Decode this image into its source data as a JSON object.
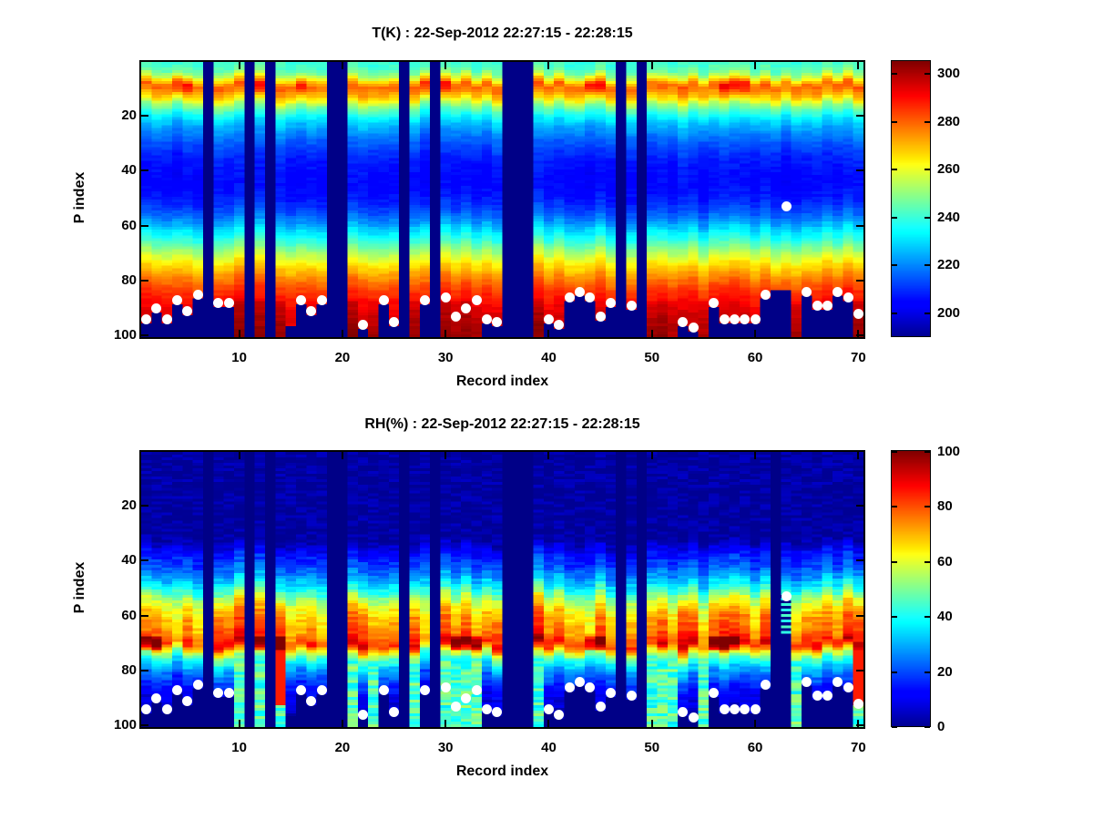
{
  "figure": {
    "background": "#ffffff",
    "text_color": "#000000"
  },
  "chart_data": [
    {
      "type": "heatmap",
      "title": "T(K) : 22-Sep-2012 22:27:15 - 22:28:15",
      "xlabel": "Record index",
      "ylabel": "P index",
      "x_range": [
        1,
        70
      ],
      "y_range": [
        1,
        100
      ],
      "y_axis_reversed": true,
      "grid": false,
      "x_ticks": [
        10,
        20,
        30,
        40,
        50,
        60,
        70
      ],
      "y_ticks": [
        20,
        40,
        60,
        80,
        100
      ],
      "colormap": "jet",
      "caxis": [
        190,
        305
      ],
      "colorbar_ticks": [
        200,
        220,
        240,
        260,
        280,
        300
      ],
      "missing_value_color": "#000087",
      "dot_color": "#ffffff",
      "vertical_profile": [
        [
          1,
          240
        ],
        [
          4,
          246
        ],
        [
          6,
          258
        ],
        [
          9,
          280
        ],
        [
          12,
          272
        ],
        [
          14,
          263
        ],
        [
          16,
          250
        ],
        [
          19,
          238
        ],
        [
          22,
          228
        ],
        [
          26,
          220
        ],
        [
          30,
          214
        ],
        [
          35,
          208
        ],
        [
          40,
          205
        ],
        [
          45,
          204
        ],
        [
          50,
          207
        ],
        [
          54,
          212
        ],
        [
          58,
          220
        ],
        [
          62,
          231
        ],
        [
          66,
          242
        ],
        [
          70,
          254
        ],
        [
          74,
          265
        ],
        [
          78,
          274
        ],
        [
          82,
          282
        ],
        [
          86,
          288
        ],
        [
          90,
          292
        ],
        [
          94,
          295
        ],
        [
          98,
          297
        ],
        [
          100,
          298
        ]
      ],
      "missing_records": [
        7,
        11,
        13,
        19,
        20,
        26,
        29,
        36,
        37,
        38,
        47,
        49
      ],
      "deep_records": [
        10,
        12,
        14,
        21,
        23,
        27,
        30,
        31,
        32,
        33,
        39,
        50,
        51,
        52,
        55,
        64,
        70
      ],
      "depth_overrides": {
        "62": 83,
        "63": 83
      },
      "warm_band_records": [
        4,
        5,
        12,
        16,
        28,
        29,
        30,
        44,
        45,
        57,
        58,
        59
      ],
      "surface_dots": [
        [
          1,
          94
        ],
        [
          2,
          90
        ],
        [
          3,
          94
        ],
        [
          4,
          87
        ],
        [
          5,
          91
        ],
        [
          6,
          85
        ],
        [
          8,
          88
        ],
        [
          9,
          88
        ],
        [
          16,
          87
        ],
        [
          17,
          91
        ],
        [
          18,
          87
        ],
        [
          22,
          96
        ],
        [
          24,
          87
        ],
        [
          25,
          95
        ],
        [
          28,
          87
        ],
        [
          30,
          86
        ],
        [
          31,
          93
        ],
        [
          32,
          90
        ],
        [
          33,
          87
        ],
        [
          34,
          94
        ],
        [
          35,
          95
        ],
        [
          40,
          94
        ],
        [
          41,
          96
        ],
        [
          42,
          86
        ],
        [
          43,
          84
        ],
        [
          44,
          86
        ],
        [
          45,
          93
        ],
        [
          46,
          88
        ],
        [
          48,
          89
        ],
        [
          53,
          95
        ],
        [
          54,
          97
        ],
        [
          56,
          88
        ],
        [
          57,
          94
        ],
        [
          58,
          94
        ],
        [
          59,
          94
        ],
        [
          60,
          94
        ],
        [
          61,
          85
        ],
        [
          63,
          53
        ],
        [
          65,
          84
        ],
        [
          66,
          89
        ],
        [
          67,
          89
        ],
        [
          68,
          84
        ],
        [
          69,
          86
        ],
        [
          70,
          92
        ]
      ]
    },
    {
      "type": "heatmap",
      "title": "RH(%) : 22-Sep-2012 22:27:15 - 22:28:15",
      "xlabel": "Record index",
      "ylabel": "P index",
      "x_range": [
        1,
        70
      ],
      "y_range": [
        1,
        100
      ],
      "y_axis_reversed": true,
      "grid": false,
      "x_ticks": [
        10,
        20,
        30,
        40,
        50,
        60,
        70
      ],
      "y_ticks": [
        20,
        40,
        60,
        80,
        100
      ],
      "colormap": "jet",
      "caxis": [
        0,
        100
      ],
      "colorbar_ticks": [
        0,
        20,
        40,
        60,
        80,
        100
      ],
      "missing_value_color": "#000087",
      "dot_color": "#ffffff",
      "vertical_profile": [
        [
          1,
          1
        ],
        [
          32,
          1
        ],
        [
          34,
          4
        ],
        [
          36,
          10
        ],
        [
          39,
          16
        ],
        [
          42,
          20
        ],
        [
          45,
          26
        ],
        [
          48,
          34
        ],
        [
          51,
          44
        ],
        [
          54,
          56
        ],
        [
          57,
          64
        ],
        [
          60,
          70
        ],
        [
          63,
          73
        ],
        [
          66,
          76
        ],
        [
          68,
          80
        ],
        [
          70,
          86
        ],
        [
          71,
          80
        ],
        [
          73,
          62
        ],
        [
          75,
          48
        ],
        [
          78,
          34
        ],
        [
          81,
          25
        ],
        [
          84,
          18
        ],
        [
          88,
          11
        ],
        [
          92,
          7
        ],
        [
          96,
          5
        ],
        [
          100,
          4
        ]
      ],
      "missing_records": [
        7,
        11,
        13,
        19,
        20,
        26,
        29,
        36,
        37,
        38,
        47,
        49
      ],
      "deep_records": [
        10,
        12,
        14,
        21,
        23,
        27,
        30,
        31,
        32,
        33,
        39,
        50,
        51,
        52,
        55,
        64,
        70
      ],
      "depth_overrides": {
        "62": 0
      },
      "dashed_record": 63,
      "high_rh_spike_records": [
        1,
        2,
        12,
        14,
        31,
        32,
        33,
        44,
        45,
        56,
        57,
        58
      ],
      "deep_red_records": [
        14,
        70
      ],
      "surface_dots": [
        [
          1,
          94
        ],
        [
          2,
          90
        ],
        [
          3,
          94
        ],
        [
          4,
          87
        ],
        [
          5,
          91
        ],
        [
          6,
          85
        ],
        [
          8,
          88
        ],
        [
          9,
          88
        ],
        [
          16,
          87
        ],
        [
          17,
          91
        ],
        [
          18,
          87
        ],
        [
          22,
          96
        ],
        [
          24,
          87
        ],
        [
          25,
          95
        ],
        [
          28,
          87
        ],
        [
          30,
          86
        ],
        [
          31,
          93
        ],
        [
          32,
          90
        ],
        [
          33,
          87
        ],
        [
          34,
          94
        ],
        [
          35,
          95
        ],
        [
          40,
          94
        ],
        [
          41,
          96
        ],
        [
          42,
          86
        ],
        [
          43,
          84
        ],
        [
          44,
          86
        ],
        [
          45,
          93
        ],
        [
          46,
          88
        ],
        [
          48,
          89
        ],
        [
          53,
          95
        ],
        [
          54,
          97
        ],
        [
          56,
          88
        ],
        [
          57,
          94
        ],
        [
          58,
          94
        ],
        [
          59,
          94
        ],
        [
          60,
          94
        ],
        [
          61,
          85
        ],
        [
          63,
          53
        ],
        [
          65,
          84
        ],
        [
          66,
          89
        ],
        [
          67,
          89
        ],
        [
          68,
          84
        ],
        [
          69,
          86
        ],
        [
          70,
          92
        ]
      ]
    }
  ]
}
